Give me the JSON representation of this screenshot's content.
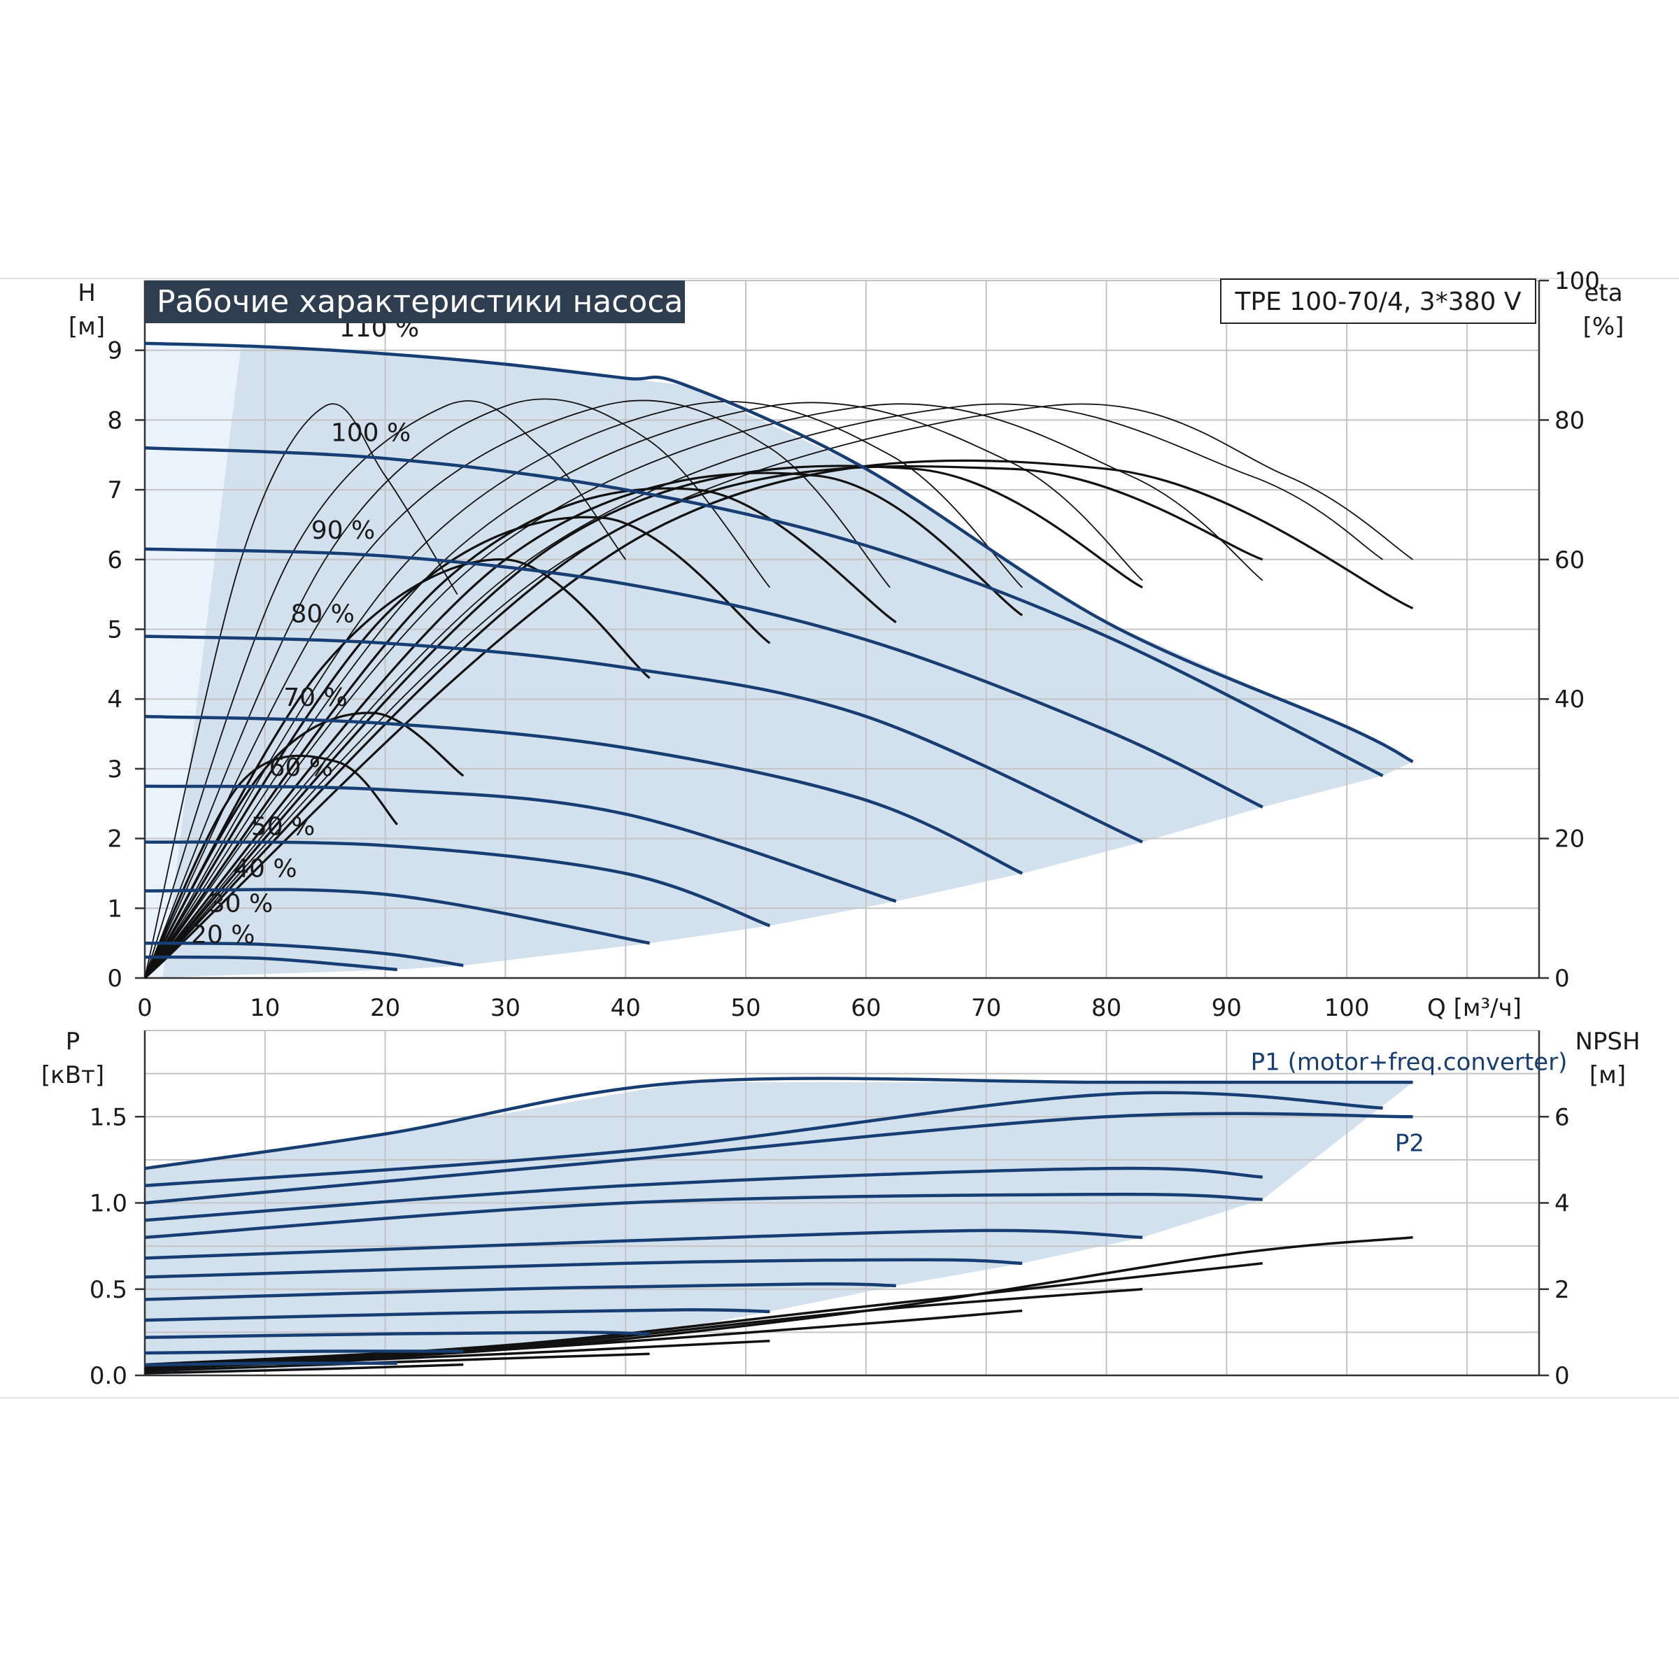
{
  "colors": {
    "curve": "#173e73",
    "eff": "#111111",
    "envelope": "#d3e0ee",
    "envelope_light": "#eaf2fb",
    "grid": "#c4c4c4",
    "title_bg": "#2e3d50"
  },
  "chart_data": [
    {
      "type": "line",
      "title": "Рабочие характеристики насоса",
      "model": "TPE 100-70/4, 3*380 V",
      "ylabel": "H",
      "yunit": "[м]",
      "y2label": "eta",
      "y2unit": "[%]",
      "xlabel": "Q [м³/ч]",
      "xlim": [
        0,
        116
      ],
      "ylim": [
        0,
        10
      ],
      "y2lim": [
        0,
        100
      ],
      "grid": true,
      "x_ticks": [
        "0",
        "10",
        "20",
        "30",
        "40",
        "50",
        "60",
        "70",
        "80",
        "90",
        "100"
      ],
      "y_ticks": [
        "0",
        "1",
        "2",
        "3",
        "4",
        "5",
        "6",
        "7",
        "8",
        "9"
      ],
      "y2_ticks": [
        "0",
        "20",
        "40",
        "60",
        "80",
        "100"
      ],
      "speed_labels": [
        {
          "text": "110 %",
          "x": 19.5,
          "y": 9.2
        },
        {
          "text": "100 %",
          "x": 18.8,
          "y": 7.7
        },
        {
          "text": "90 %",
          "x": 16.5,
          "y": 6.3
        },
        {
          "text": "80 %",
          "x": 14.8,
          "y": 5.1
        },
        {
          "text": "70 %",
          "x": 14.2,
          "y": 3.9
        },
        {
          "text": "60 %",
          "x": 13,
          "y": 2.9
        },
        {
          "text": "50 %",
          "x": 11.5,
          "y": 2.05
        },
        {
          "text": "40 %",
          "x": 10,
          "y": 1.45
        },
        {
          "text": "30 %",
          "x": 8,
          "y": 0.95
        },
        {
          "text": "20 %",
          "x": 6.5,
          "y": 0.5
        }
      ],
      "series": [
        {
          "x": [
            0,
            10,
            20,
            30,
            40,
            45,
            60,
            80,
            100,
            105.5
          ],
          "values": [
            9.1,
            9.05,
            8.95,
            8.8,
            8.6,
            8.5,
            7.3,
            5.1,
            3.6,
            3.1
          ]
        },
        {
          "x": [
            0,
            20,
            40,
            60,
            80,
            103
          ],
          "values": [
            7.6,
            7.45,
            7.0,
            6.2,
            4.9,
            2.9
          ]
        },
        {
          "x": [
            0,
            20,
            40,
            60,
            80,
            93
          ],
          "values": [
            6.15,
            6.05,
            5.65,
            4.85,
            3.55,
            2.45
          ]
        },
        {
          "x": [
            0,
            20,
            40,
            60,
            83
          ],
          "values": [
            4.9,
            4.8,
            4.45,
            3.75,
            1.95
          ]
        },
        {
          "x": [
            0,
            20,
            40,
            60,
            73
          ],
          "values": [
            3.75,
            3.65,
            3.3,
            2.55,
            1.5
          ]
        },
        {
          "x": [
            0,
            20,
            40,
            62.5
          ],
          "values": [
            2.75,
            2.7,
            2.35,
            1.1
          ]
        },
        {
          "x": [
            0,
            20,
            40,
            52
          ],
          "values": [
            1.95,
            1.9,
            1.5,
            0.75
          ]
        },
        {
          "x": [
            0,
            20,
            42
          ],
          "values": [
            1.25,
            1.2,
            0.5
          ]
        },
        {
          "x": [
            0,
            10,
            20,
            26.5
          ],
          "values": [
            0.5,
            0.48,
            0.35,
            0.18
          ]
        },
        {
          "x": [
            0,
            10,
            21
          ],
          "values": [
            0.3,
            0.28,
            0.12
          ]
        }
      ],
      "efficiency_series": [
        {
          "x": [
            0,
            8,
            15,
            20,
            26
          ],
          "values": [
            0,
            60,
            82,
            72,
            55
          ]
        },
        {
          "x": [
            0,
            12,
            25,
            33,
            40
          ],
          "values": [
            0,
            60,
            82,
            76,
            60
          ]
        },
        {
          "x": [
            0,
            15,
            30,
            42,
            52
          ],
          "values": [
            0,
            60,
            82,
            77,
            56
          ]
        },
        {
          "x": [
            0,
            18,
            38,
            52,
            62
          ],
          "values": [
            0,
            60,
            82,
            76,
            56
          ]
        },
        {
          "x": [
            0,
            22,
            45,
            62,
            73
          ],
          "values": [
            0,
            60,
            82,
            75,
            56
          ]
        },
        {
          "x": [
            0,
            25,
            52,
            72,
            83
          ],
          "values": [
            0,
            60,
            82,
            74,
            57
          ]
        },
        {
          "x": [
            0,
            28,
            60,
            82,
            93
          ],
          "values": [
            0,
            60,
            82,
            72,
            57
          ]
        },
        {
          "x": [
            0,
            32,
            68,
            92,
            103
          ],
          "values": [
            0,
            60,
            82,
            72,
            60
          ]
        },
        {
          "x": [
            0,
            35,
            75,
            95,
            105.5
          ],
          "values": [
            0,
            60,
            82,
            72,
            60
          ]
        },
        {
          "x": [
            0,
            8,
            16,
            21
          ],
          "values": [
            0,
            28,
            31,
            22
          ]
        },
        {
          "x": [
            0,
            10,
            19,
            26.5
          ],
          "values": [
            0,
            30,
            38,
            29
          ]
        },
        {
          "x": [
            0,
            15,
            30,
            42
          ],
          "values": [
            0,
            45,
            60,
            43
          ]
        },
        {
          "x": [
            0,
            20,
            38,
            52
          ],
          "values": [
            0,
            52,
            66,
            48
          ]
        },
        {
          "x": [
            0,
            25,
            46,
            62.5
          ],
          "values": [
            0,
            57,
            70,
            51
          ]
        },
        {
          "x": [
            0,
            30,
            56,
            73
          ],
          "values": [
            0,
            60,
            72,
            52
          ]
        },
        {
          "x": [
            0,
            34,
            64,
            83
          ],
          "values": [
            0,
            62,
            73,
            56
          ]
        },
        {
          "x": [
            0,
            38,
            72,
            93
          ],
          "values": [
            0,
            63,
            73,
            60
          ]
        },
        {
          "x": [
            0,
            42,
            80,
            105.5
          ],
          "values": [
            0,
            64,
            73,
            53
          ]
        }
      ]
    },
    {
      "type": "line",
      "ylabel": "P",
      "yunit": "[кВт]",
      "y2label": "NPSH",
      "y2unit": "[м]",
      "xlim": [
        0,
        116
      ],
      "ylim": [
        0,
        2.0
      ],
      "y2lim": [
        0,
        8
      ],
      "grid": true,
      "y_ticks": [
        "0.0",
        "0.5",
        "1.0",
        "1.5"
      ],
      "y2_ticks": [
        "0",
        "2",
        "4",
        "6"
      ],
      "curve_labels": [
        {
          "text": "P1 (motor+freq.converter)",
          "x": 92,
          "y": 1.77
        },
        {
          "text": "P2",
          "x": 104,
          "y": 1.3
        }
      ],
      "series": [
        {
          "x": [
            0,
            20,
            45,
            80,
            105.5
          ],
          "values": [
            1.2,
            1.4,
            1.7,
            1.7,
            1.7
          ]
        },
        {
          "x": [
            0,
            40,
            80,
            103
          ],
          "values": [
            1.1,
            1.3,
            1.63,
            1.55
          ]
        },
        {
          "x": [
            0,
            40,
            80,
            105.5
          ],
          "values": [
            1.0,
            1.25,
            1.5,
            1.5
          ]
        },
        {
          "x": [
            0,
            40,
            80,
            93
          ],
          "values": [
            0.9,
            1.1,
            1.2,
            1.15
          ]
        },
        {
          "x": [
            0,
            40,
            80,
            93
          ],
          "values": [
            0.8,
            1.0,
            1.05,
            1.02
          ]
        },
        {
          "x": [
            0,
            40,
            70,
            83
          ],
          "values": [
            0.68,
            0.78,
            0.84,
            0.8
          ]
        },
        {
          "x": [
            0,
            40,
            65,
            73
          ],
          "values": [
            0.57,
            0.65,
            0.67,
            0.65
          ]
        },
        {
          "x": [
            0,
            30,
            55,
            62.5
          ],
          "values": [
            0.44,
            0.5,
            0.53,
            0.52
          ]
        },
        {
          "x": [
            0,
            25,
            45,
            52
          ],
          "values": [
            0.32,
            0.36,
            0.38,
            0.37
          ]
        },
        {
          "x": [
            0,
            20,
            36,
            42
          ],
          "values": [
            0.22,
            0.24,
            0.25,
            0.24
          ]
        },
        {
          "x": [
            0,
            15,
            26.5
          ],
          "values": [
            0.13,
            0.14,
            0.14
          ]
        },
        {
          "x": [
            0,
            10,
            21
          ],
          "values": [
            0.06,
            0.07,
            0.07
          ]
        }
      ],
      "npsh_series": [
        {
          "x": [
            0,
            30,
            60,
            90,
            105.5
          ],
          "values": [
            0.2,
            0.6,
            1.5,
            2.8,
            3.2
          ]
        },
        {
          "x": [
            0,
            30,
            60,
            93
          ],
          "values": [
            0.25,
            0.7,
            1.6,
            2.6
          ]
        },
        {
          "x": [
            0,
            30,
            60,
            83
          ],
          "values": [
            0.2,
            0.65,
            1.5,
            2.0
          ]
        },
        {
          "x": [
            0,
            30,
            60,
            73
          ],
          "values": [
            0.2,
            0.6,
            1.2,
            1.5
          ]
        },
        {
          "x": [
            0,
            30,
            52
          ],
          "values": [
            0.15,
            0.5,
            0.8
          ]
        },
        {
          "x": [
            0,
            20,
            42
          ],
          "values": [
            0.1,
            0.3,
            0.5
          ]
        },
        {
          "x": [
            0,
            15,
            26.5
          ],
          "values": [
            0.05,
            0.15,
            0.25
          ]
        }
      ]
    }
  ]
}
